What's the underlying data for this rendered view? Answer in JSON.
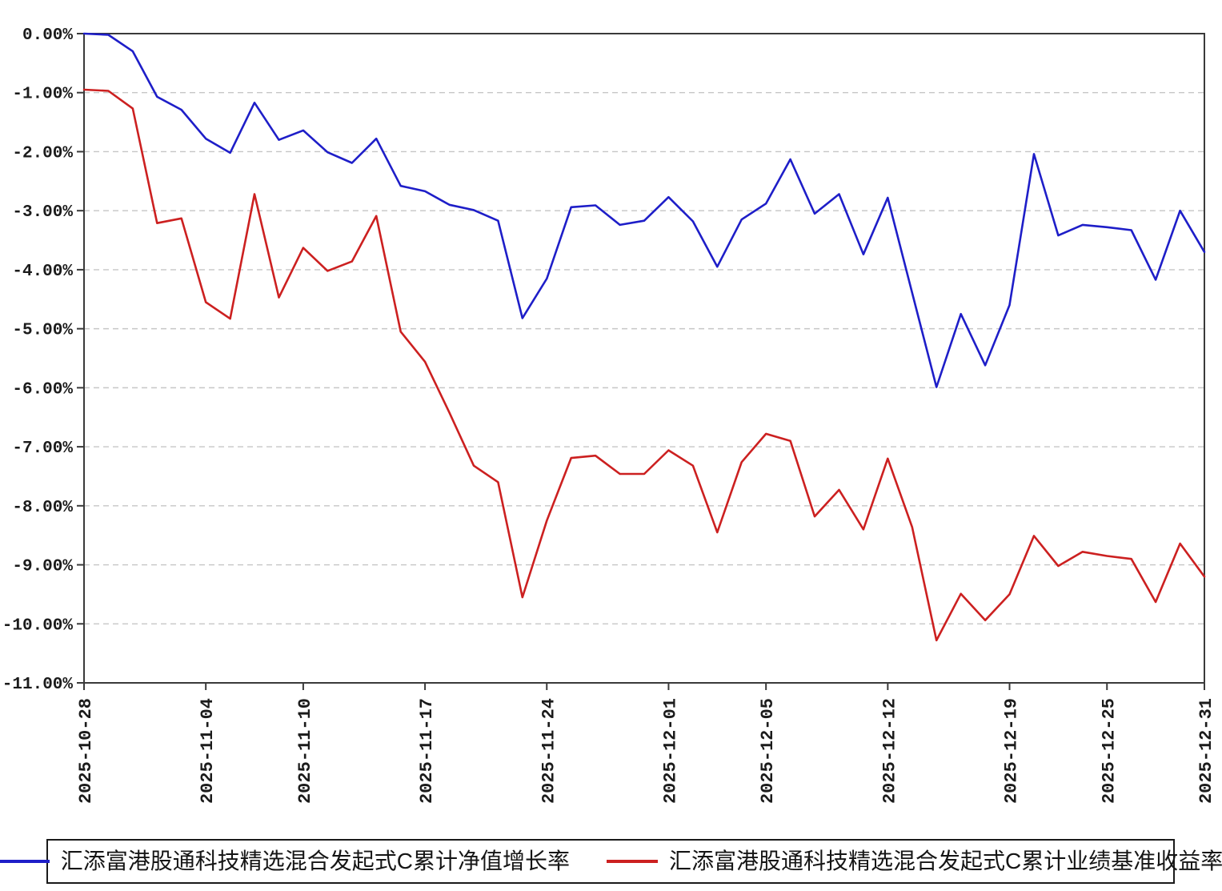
{
  "chart_data": {
    "type": "line",
    "title": "",
    "xlabel": "",
    "ylabel": "",
    "grid": "horizontal-dashed",
    "legend_position": "bottom",
    "x_dates": [
      "2025-10-28",
      "2025-10-29",
      "2025-10-30",
      "2025-10-31",
      "2025-11-03",
      "2025-11-04",
      "2025-11-05",
      "2025-11-06",
      "2025-11-07",
      "2025-11-10",
      "2025-11-11",
      "2025-11-12",
      "2025-11-13",
      "2025-11-14",
      "2025-11-17",
      "2025-11-18",
      "2025-11-19",
      "2025-11-20",
      "2025-11-21",
      "2025-11-24",
      "2025-11-25",
      "2025-11-26",
      "2025-11-27",
      "2025-11-28",
      "2025-12-01",
      "2025-12-02",
      "2025-12-03",
      "2025-12-04",
      "2025-12-05",
      "2025-12-08",
      "2025-12-09",
      "2025-12-10",
      "2025-12-11",
      "2025-12-12",
      "2025-12-15",
      "2025-12-16",
      "2025-12-17",
      "2025-12-18",
      "2025-12-19",
      "2025-12-22",
      "2025-12-23",
      "2025-12-24",
      "2025-12-25",
      "2025-12-26",
      "2025-12-29",
      "2025-12-30",
      "2025-12-31"
    ],
    "series": [
      {
        "name": "汇添富港股通科技精选混合发起式C累计净值增长率",
        "color": "#1E1EC8",
        "values": [
          0.0,
          -0.02,
          -0.3,
          -1.07,
          -1.29,
          -1.78,
          -2.02,
          -1.17,
          -1.8,
          -1.64,
          -2.01,
          -2.19,
          -1.78,
          -2.58,
          -2.67,
          -2.9,
          -2.99,
          -3.17,
          -4.82,
          -4.15,
          -2.94,
          -2.91,
          -3.24,
          -3.17,
          -2.77,
          -3.18,
          -3.95,
          -3.15,
          -2.88,
          -2.13,
          -3.05,
          -2.72,
          -3.74,
          -2.78,
          -4.39,
          -5.99,
          -4.75,
          -5.62,
          -4.6,
          -2.04,
          -3.42,
          -3.24,
          -3.28,
          -3.33,
          -4.17,
          -3.0,
          -3.7
        ]
      },
      {
        "name": "汇添富港股通科技精选混合发起式C累计业绩基准收益率",
        "color": "#CC2020",
        "values": [
          -0.95,
          -0.97,
          -1.27,
          -3.21,
          -3.13,
          -4.55,
          -4.83,
          -2.72,
          -4.47,
          -3.63,
          -4.02,
          -3.86,
          -3.09,
          -5.05,
          -5.56,
          -6.42,
          -7.32,
          -7.6,
          -9.55,
          -8.25,
          -7.19,
          -7.15,
          -7.46,
          -7.46,
          -7.06,
          -7.32,
          -8.45,
          -7.26,
          -6.78,
          -6.9,
          -8.18,
          -7.73,
          -8.4,
          -7.2,
          -8.36,
          -10.28,
          -9.49,
          -9.94,
          -9.5,
          -8.51,
          -9.02,
          -8.78,
          -8.85,
          -8.9,
          -9.63,
          -8.64,
          -9.2
        ]
      }
    ],
    "y_axis": {
      "min": -11,
      "max": 0,
      "step": 1,
      "tick_labels": [
        "0.00%",
        "-1.00%",
        "-2.00%",
        "-3.00%",
        "-4.00%",
        "-5.00%",
        "-6.00%",
        "-7.00%",
        "-8.00%",
        "-9.00%",
        "-10.00%",
        "-11.00%"
      ]
    },
    "x_axis": {
      "tick_indices": [
        0,
        5,
        9,
        14,
        19,
        24,
        28,
        33,
        38,
        42,
        46
      ],
      "tick_labels": [
        "2025-10-28",
        "2025-11-04",
        "2025-11-10",
        "2025-11-17",
        "2025-11-24",
        "2025-12-01",
        "2025-12-05",
        "2025-12-12",
        "2025-12-19",
        "2025-12-25",
        "2025-12-31"
      ]
    }
  },
  "legend": {
    "items": [
      {
        "label": "汇添富港股通科技精选混合发起式C累计净值增长率",
        "color": "#1E1EC8"
      },
      {
        "label": "汇添富港股通科技精选混合发起式C累计业绩基准收益率",
        "color": "#CC2020"
      }
    ]
  },
  "colors": {
    "background": "#ffffff",
    "axis": "#3a3a3a",
    "gridline": "#c6c6c6",
    "tick_text": "#1b1b1b"
  }
}
